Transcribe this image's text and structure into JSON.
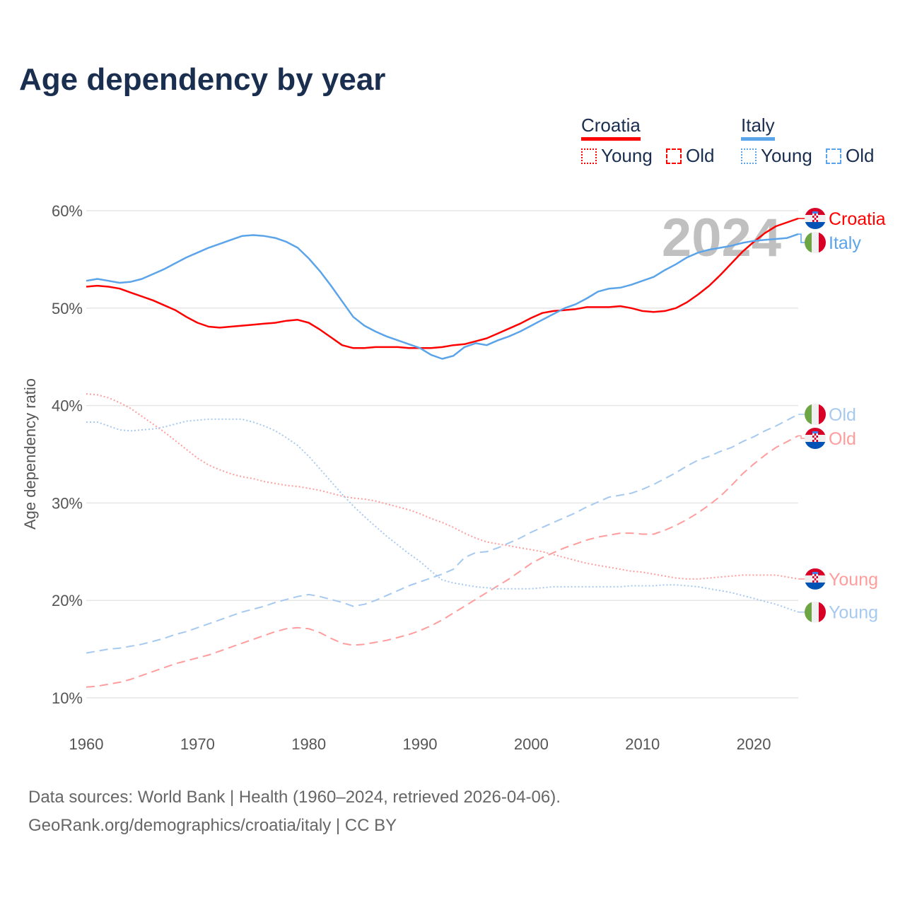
{
  "title": "Age dependency by year",
  "legend": {
    "groups": [
      {
        "name": "Croatia",
        "color": "#ff0000",
        "items": [
          "Young",
          "Old"
        ]
      },
      {
        "name": "Italy",
        "color": "#5ba4ea",
        "items": [
          "Young",
          "Old"
        ]
      }
    ]
  },
  "footer": {
    "line1": "Data sources: World Bank | Health (1960–2024, retrieved 2026-04-06).",
    "line2": "GeoRank.org/demographics/croatia/italy | CC BY"
  },
  "chart_data": {
    "type": "line",
    "title": "Age dependency by year",
    "xlabel": "",
    "ylabel": "Age dependency ratio",
    "year_watermark": "2024",
    "xlim": [
      1960,
      2024
    ],
    "ylim": [
      10,
      60
    ],
    "x_ticks": [
      "1960",
      "1970",
      "1980",
      "1990",
      "2000",
      "2010",
      "2020"
    ],
    "y_ticks": [
      "10%",
      "20%",
      "30%",
      "40%",
      "50%",
      "60%"
    ],
    "grid": true,
    "x_start": 1960,
    "series": [
      {
        "name": "Croatia",
        "label": "Croatia",
        "country": "Croatia",
        "style": "solid",
        "color": "#ff0000",
        "values": [
          52.2,
          52.3,
          52.2,
          52.0,
          51.6,
          51.2,
          50.8,
          50.3,
          49.8,
          49.1,
          48.5,
          48.1,
          48.0,
          48.1,
          48.2,
          48.3,
          48.4,
          48.5,
          48.7,
          48.8,
          48.5,
          47.8,
          47.0,
          46.2,
          45.9,
          45.9,
          46.0,
          46.0,
          46.0,
          45.9,
          45.9,
          45.9,
          46.0,
          46.2,
          46.3,
          46.6,
          46.9,
          47.4,
          47.9,
          48.4,
          49.0,
          49.5,
          49.7,
          49.8,
          49.9,
          50.1,
          50.1,
          50.1,
          50.2,
          50.0,
          49.7,
          49.6,
          49.7,
          50.0,
          50.6,
          51.4,
          52.3,
          53.4,
          54.6,
          55.8,
          56.8,
          57.7,
          58.4,
          58.8,
          59.2
        ]
      },
      {
        "name": "Italy",
        "label": "Italy",
        "country": "Italy",
        "style": "solid",
        "color": "#5ba4ea",
        "values": [
          52.8,
          53.0,
          52.8,
          52.6,
          52.7,
          53.0,
          53.5,
          54.0,
          54.6,
          55.2,
          55.7,
          56.2,
          56.6,
          57.0,
          57.4,
          57.5,
          57.4,
          57.2,
          56.8,
          56.2,
          55.1,
          53.8,
          52.3,
          50.7,
          49.1,
          48.2,
          47.6,
          47.1,
          46.7,
          46.3,
          45.9,
          45.2,
          44.8,
          45.1,
          46.0,
          46.4,
          46.2,
          46.7,
          47.1,
          47.6,
          48.2,
          48.8,
          49.4,
          50.0,
          50.4,
          51.0,
          51.7,
          52.0,
          52.1,
          52.4,
          52.8,
          53.2,
          53.9,
          54.5,
          55.2,
          55.7,
          56.0,
          56.2,
          56.4,
          56.7,
          56.9,
          57.0,
          57.1,
          57.2,
          57.6
        ]
      },
      {
        "name": "Italy Old",
        "label": "Old",
        "country": "Italy",
        "style": "dashed",
        "color": "#a6c9f0",
        "values": [
          14.6,
          14.8,
          15.0,
          15.1,
          15.3,
          15.5,
          15.8,
          16.1,
          16.5,
          16.8,
          17.2,
          17.6,
          18.0,
          18.4,
          18.8,
          19.1,
          19.4,
          19.8,
          20.1,
          20.4,
          20.6,
          20.4,
          20.1,
          19.8,
          19.4,
          19.6,
          20.0,
          20.5,
          21.0,
          21.5,
          21.9,
          22.3,
          22.7,
          23.2,
          24.4,
          24.9,
          25.0,
          25.4,
          25.9,
          26.4,
          27.0,
          27.5,
          28.0,
          28.5,
          29.0,
          29.6,
          30.1,
          30.6,
          30.8,
          31.0,
          31.4,
          31.9,
          32.5,
          33.1,
          33.8,
          34.4,
          34.8,
          35.3,
          35.7,
          36.3,
          36.8,
          37.4,
          37.9,
          38.5,
          39.1
        ]
      },
      {
        "name": "Croatia Old",
        "label": "Old",
        "country": "Croatia",
        "style": "dashed",
        "color": "#ff9c9c",
        "values": [
          11.1,
          11.2,
          11.4,
          11.6,
          11.9,
          12.3,
          12.7,
          13.1,
          13.5,
          13.8,
          14.1,
          14.4,
          14.8,
          15.2,
          15.6,
          16.0,
          16.4,
          16.8,
          17.1,
          17.2,
          17.1,
          16.7,
          16.1,
          15.6,
          15.4,
          15.5,
          15.7,
          15.9,
          16.2,
          16.5,
          16.9,
          17.4,
          18.0,
          18.7,
          19.4,
          20.1,
          20.8,
          21.5,
          22.2,
          23.0,
          23.8,
          24.4,
          24.9,
          25.4,
          25.8,
          26.2,
          26.5,
          26.7,
          26.9,
          26.9,
          26.8,
          26.8,
          27.2,
          27.7,
          28.3,
          29.0,
          29.8,
          30.7,
          31.8,
          33.0,
          34.0,
          34.9,
          35.7,
          36.3,
          36.9
        ]
      },
      {
        "name": "Croatia Young",
        "label": "Young",
        "country": "Croatia",
        "style": "dotted",
        "color": "#ff9c9c",
        "values": [
          41.2,
          41.1,
          40.8,
          40.3,
          39.7,
          38.9,
          38.1,
          37.3,
          36.4,
          35.5,
          34.6,
          33.9,
          33.4,
          33.0,
          32.7,
          32.5,
          32.2,
          32.0,
          31.8,
          31.7,
          31.5,
          31.3,
          31.0,
          30.7,
          30.5,
          30.4,
          30.2,
          29.9,
          29.6,
          29.3,
          28.9,
          28.4,
          28.0,
          27.5,
          26.9,
          26.4,
          26.0,
          25.8,
          25.6,
          25.4,
          25.2,
          25.0,
          24.7,
          24.4,
          24.1,
          23.8,
          23.6,
          23.4,
          23.2,
          23.0,
          22.9,
          22.7,
          22.5,
          22.3,
          22.2,
          22.2,
          22.3,
          22.4,
          22.5,
          22.6,
          22.6,
          22.6,
          22.6,
          22.4,
          22.2
        ]
      },
      {
        "name": "Italy Young",
        "label": "Young",
        "country": "Italy",
        "style": "dotted",
        "color": "#a6c9f0",
        "values": [
          38.3,
          38.3,
          37.9,
          37.5,
          37.4,
          37.5,
          37.6,
          37.8,
          38.1,
          38.4,
          38.5,
          38.6,
          38.6,
          38.6,
          38.6,
          38.3,
          37.9,
          37.4,
          36.7,
          35.9,
          34.8,
          33.5,
          32.2,
          30.9,
          29.7,
          28.6,
          27.6,
          26.6,
          25.7,
          24.8,
          24.0,
          23.0,
          22.1,
          21.8,
          21.6,
          21.4,
          21.3,
          21.2,
          21.2,
          21.2,
          21.2,
          21.3,
          21.4,
          21.4,
          21.4,
          21.4,
          21.4,
          21.4,
          21.4,
          21.5,
          21.5,
          21.5,
          21.6,
          21.6,
          21.5,
          21.4,
          21.2,
          21.0,
          20.8,
          20.5,
          20.2,
          19.9,
          19.6,
          19.2,
          18.8
        ]
      }
    ]
  }
}
